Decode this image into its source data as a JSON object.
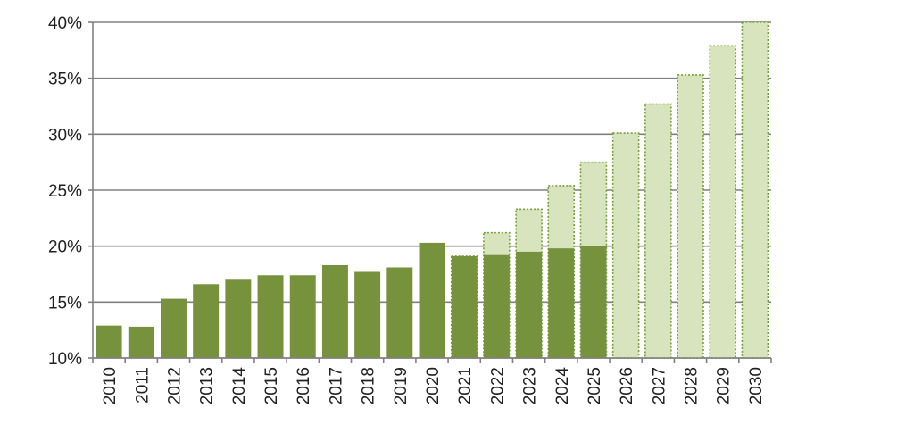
{
  "chart_data": {
    "type": "bar",
    "title": "",
    "xlabel": "",
    "ylabel": "",
    "ylim": [
      10,
      40
    ],
    "yticks": [
      "10%",
      "15%",
      "20%",
      "25%",
      "30%",
      "35%",
      "40%"
    ],
    "ytick_values": [
      10,
      15,
      20,
      25,
      30,
      35,
      40
    ],
    "grid": true,
    "legend": "none",
    "categories": [
      "2010",
      "2011",
      "2012",
      "2013",
      "2014",
      "2015",
      "2016",
      "2017",
      "2018",
      "2019",
      "2020",
      "2021",
      "2022",
      "2023",
      "2024",
      "2025",
      "2026",
      "2027",
      "2028",
      "2029",
      "2030"
    ],
    "series": [
      {
        "style": "solid",
        "values": [
          12.9,
          12.8,
          15.3,
          16.6,
          17.0,
          17.4,
          17.4,
          18.3,
          17.7,
          18.1,
          20.3,
          19.1,
          19.2,
          19.5,
          19.8,
          20.0,
          null,
          null,
          null,
          null,
          null
        ]
      },
      {
        "style": "dotted-outline",
        "values": [
          null,
          null,
          null,
          null,
          null,
          null,
          null,
          null,
          null,
          null,
          null,
          19.1,
          21.2,
          23.3,
          25.4,
          27.5,
          30.1,
          32.7,
          35.3,
          37.9,
          40.0
        ]
      }
    ],
    "colors": {
      "solid_fill": "#76923c",
      "light_fill": "#d7e4bd",
      "dotted_stroke": "#77a03a",
      "grid": "#808080",
      "axis": "#808080"
    }
  }
}
